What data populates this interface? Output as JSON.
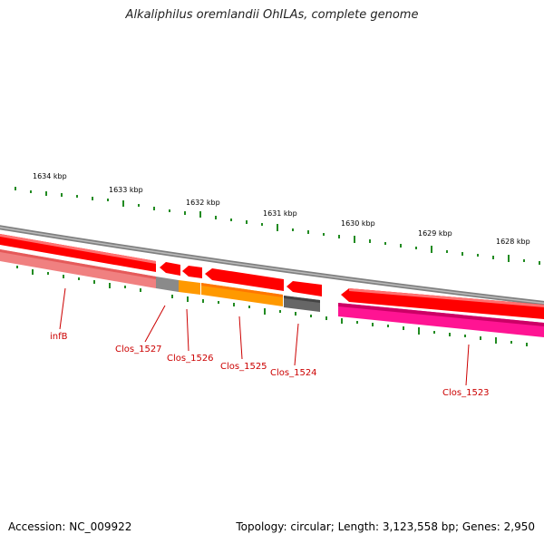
{
  "title": "Alkaliphilus oremlandii OhILAs, complete genome",
  "footer": {
    "accession": "Accession: NC_009922",
    "summary": "Topology: circular; Length: 3,123,558 bp; Genes: 2,950"
  },
  "scale_labels": [
    "1634 kbp",
    "1633 kbp",
    "1632 kbp",
    "1631 kbp",
    "1630 kbp",
    "1629 kbp",
    "1628 kbp"
  ],
  "genes": [
    "infB",
    "Clos_1527",
    "Clos_1526",
    "Clos_1525",
    "Clos_1524",
    "Clos_1523"
  ],
  "colors": {
    "backbone": "#888888",
    "cds": "#ff0000",
    "infB": "#f08080",
    "Clos_1527": "#777777",
    "Clos_1526": "#ff9900",
    "Clos_1525": "#ff9900",
    "Clos_1524": "#555555",
    "Clos_1523": "#ff1493",
    "label": "#cc0000",
    "tick": "#228b22"
  }
}
